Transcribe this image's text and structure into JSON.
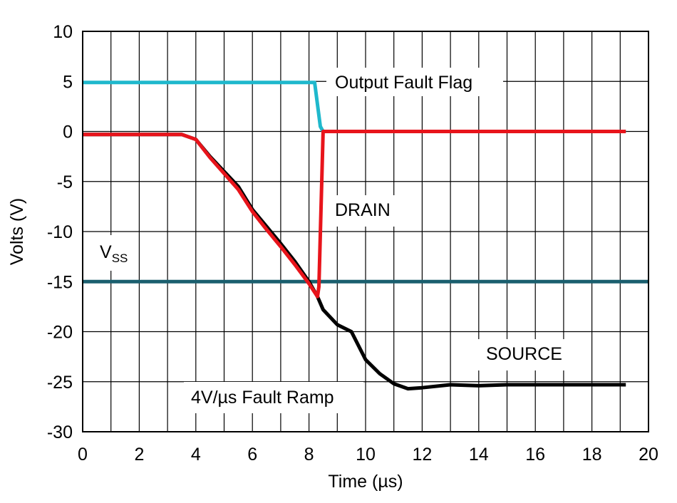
{
  "chart_data": {
    "type": "line",
    "xlabel": "Time (µs)",
    "ylabel": "Volts (V)",
    "xlim": [
      0,
      20
    ],
    "ylim": [
      -30,
      10
    ],
    "xticks": [
      0,
      2,
      4,
      6,
      8,
      10,
      12,
      14,
      16,
      18,
      20
    ],
    "yticks": [
      -30,
      -25,
      -20,
      -15,
      -10,
      -5,
      0,
      5,
      10
    ],
    "x_minor_grid": [
      1,
      3,
      5,
      7,
      9,
      11,
      13,
      15,
      17,
      19
    ],
    "grid": true,
    "series": [
      {
        "name": "VSS",
        "color": "#1a5f6e",
        "x": [
          0,
          20
        ],
        "values": [
          -15,
          -15
        ]
      },
      {
        "name": "Output Fault Flag",
        "color": "#1fb8cc",
        "x": [
          0,
          2,
          4,
          6,
          8,
          8.2,
          8.4,
          8.5,
          10,
          12,
          14,
          16,
          18,
          19.2
        ],
        "values": [
          4.9,
          4.9,
          4.9,
          4.9,
          4.9,
          4.9,
          0.5,
          0,
          0,
          0,
          0,
          0,
          0,
          0
        ]
      },
      {
        "name": "SOURCE",
        "color": "#000000",
        "x": [
          0,
          1,
          2,
          3,
          3.5,
          4,
          4.5,
          5,
          5.5,
          6,
          6.5,
          7,
          7.5,
          8,
          8.3,
          8.5,
          9,
          9.5,
          10,
          10.5,
          11,
          11.5,
          12,
          13,
          14,
          15,
          16,
          17,
          18,
          19.2
        ],
        "values": [
          -0.3,
          -0.3,
          -0.3,
          -0.3,
          -0.3,
          -0.8,
          -2.5,
          -4,
          -5.5,
          -7.8,
          -9.5,
          -11.2,
          -13,
          -15,
          -16.5,
          -17.8,
          -19.3,
          -20,
          -22.8,
          -24.2,
          -25.2,
          -25.7,
          -25.6,
          -25.3,
          -25.4,
          -25.3,
          -25.3,
          -25.3,
          -25.3,
          -25.3
        ]
      },
      {
        "name": "DRAIN",
        "color": "#e8141b",
        "x": [
          0,
          1,
          2,
          3,
          3.5,
          4,
          4.5,
          5,
          5.5,
          6,
          6.5,
          7,
          7.5,
          8,
          8.3,
          8.35,
          8.45,
          8.5,
          10,
          12,
          14,
          16,
          18,
          19.2
        ],
        "values": [
          -0.3,
          -0.3,
          -0.3,
          -0.3,
          -0.3,
          -0.8,
          -2.6,
          -4.2,
          -5.8,
          -8,
          -9.8,
          -11.5,
          -13.3,
          -15.2,
          -16.5,
          -15.5,
          -5,
          0,
          0,
          0,
          0,
          0,
          0,
          0
        ]
      }
    ],
    "annotations": {
      "flag": "Output Fault Flag",
      "drain": "DRAIN",
      "source": "SOURCE",
      "vss": "V",
      "vss_sub": "SS",
      "ramp": "4V/µs Fault Ramp"
    }
  }
}
